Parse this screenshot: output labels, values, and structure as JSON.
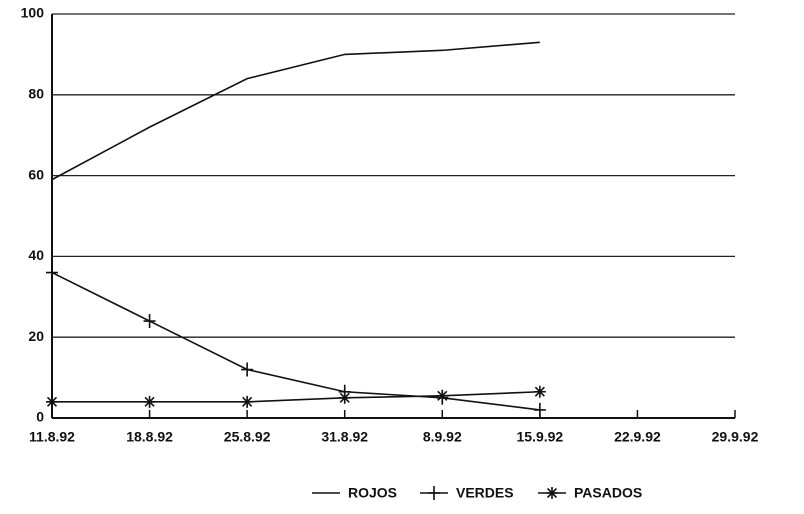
{
  "chart_data": {
    "type": "line",
    "categories": [
      "11.8.92",
      "18.8.92",
      "25.8.92",
      "31.8.92",
      "8.9.92",
      "15.9.92",
      "22.9.92",
      "29.9.92"
    ],
    "series": [
      {
        "name": "ROJOS",
        "color": "#111111",
        "marker": "none",
        "values": [
          59,
          72,
          84,
          90,
          91,
          93,
          null,
          null
        ]
      },
      {
        "name": "VERDES",
        "color": "#111111",
        "marker": "plus",
        "values": [
          36,
          24,
          12,
          6.5,
          5,
          2,
          null,
          null
        ]
      },
      {
        "name": "PASADOS",
        "color": "#111111",
        "marker": "asterisk",
        "values": [
          4,
          4,
          4,
          5,
          5.5,
          6.5,
          null,
          null
        ]
      }
    ],
    "ylim": [
      0,
      100
    ],
    "yticks": [
      0,
      20,
      40,
      60,
      80,
      100
    ],
    "grid": true,
    "legend": "bottom"
  }
}
